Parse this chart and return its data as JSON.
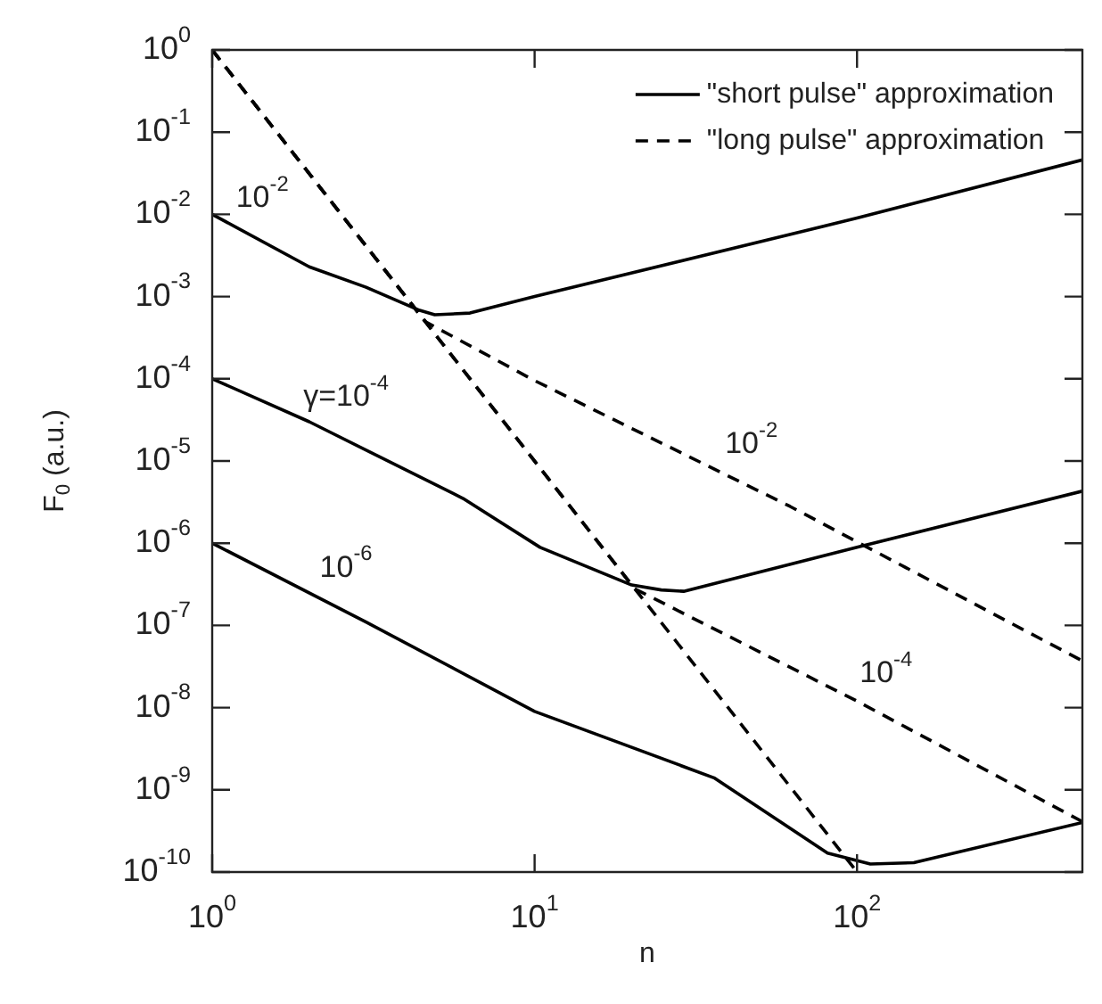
{
  "chart_data": {
    "type": "line",
    "xlabel": "n",
    "ylabel": "F$_{0}$ (a.u.)",
    "log": "xy",
    "grid": false,
    "legend": "top right",
    "marker": "none",
    "xlim": [
      1,
      500
    ],
    "ylim": [
      1e-10,
      1
    ],
    "xticks": [
      {
        "value": 1,
        "label": "10$^{0}$"
      },
      {
        "value": 10,
        "label": "10$^{1}$"
      },
      {
        "value": 100,
        "label": "10$^{2}$"
      }
    ],
    "yticks": [
      {
        "value": 1e-10,
        "label": "10$^{-10}$"
      },
      {
        "value": 1e-09,
        "label": "10$^{-9}$"
      },
      {
        "value": 1e-08,
        "label": "10$^{-8}$"
      },
      {
        "value": 1e-07,
        "label": "10$^{-7}$"
      },
      {
        "value": 1e-06,
        "label": "10$^{-6}$"
      },
      {
        "value": 1e-05,
        "label": "10$^{-5}$"
      },
      {
        "value": 0.0001,
        "label": "10$^{-4}$"
      },
      {
        "value": 0.001,
        "label": "10$^{-3}$"
      },
      {
        "value": 0.01,
        "label": "10$^{-2}$"
      },
      {
        "value": 0.1,
        "label": "10$^{-1}$"
      },
      {
        "value": 1,
        "label": "10$^{0}$"
      }
    ],
    "series": [
      {
        "name": "\"short pulse\" approximation",
        "color": "#000000",
        "line_style": "solid",
        "x": [
          1,
          2,
          3,
          4.4,
          4.9,
          6.3,
          10,
          100,
          500
        ],
        "values": [
          0.01,
          0.0023,
          0.0013,
          0.00068,
          0.0006,
          0.00063,
          0.001,
          0.009,
          0.046
        ]
      },
      {
        "color": "#000000",
        "line_style": "solid",
        "x": [
          1,
          2,
          6,
          10.4,
          20,
          24.7,
          29,
          100,
          500
        ],
        "values": [
          0.0001,
          3e-05,
          3.5e-06,
          8.9e-07,
          3.1e-07,
          2.7e-07,
          2.6e-07,
          8.9e-07,
          4.3e-06
        ]
      },
      {
        "color": "#000000",
        "line_style": "solid",
        "x": [
          1,
          3,
          10,
          36,
          81,
          110,
          150,
          500
        ],
        "values": [
          1e-06,
          1.1e-07,
          9e-09,
          1.4e-09,
          1.7e-10,
          1.25e-10,
          1.3e-10,
          4e-10
        ]
      },
      {
        "name": "\"long pulse\" approximation",
        "color": "#000000",
        "line_style": "dashed",
        "x": [
          1,
          4.6,
          10,
          62,
          500
        ],
        "values": [
          1,
          0.00049,
          9.5e-05,
          2.8e-06,
          3.7e-08
        ]
      },
      {
        "color": "#000000",
        "line_style": "dashed",
        "x": [
          1,
          20.4,
          100,
          500
        ],
        "values": [
          1,
          2.8e-07,
          1.2e-08,
          4.1e-10
        ]
      },
      {
        "color": "#000000",
        "line_style": "dashed",
        "x": [
          1,
          100
        ],
        "values": [
          1,
          1e-10
        ]
      }
    ],
    "annotations": [
      {
        "text": "10$^{-2}$",
        "x": 1.43,
        "y": 0.0047
      },
      {
        "text": "γ=10$^{-4}$",
        "x": 2.6,
        "y": 1.8e-05
      },
      {
        "text": "10$^{-6}$",
        "x": 2.6,
        "y": 1.5e-07
      },
      {
        "text": "10$^{-2}$",
        "x": 47,
        "y": 4.8e-06
      },
      {
        "text": "10$^{-4}$",
        "x": 123,
        "y": 7.8e-09
      }
    ]
  }
}
